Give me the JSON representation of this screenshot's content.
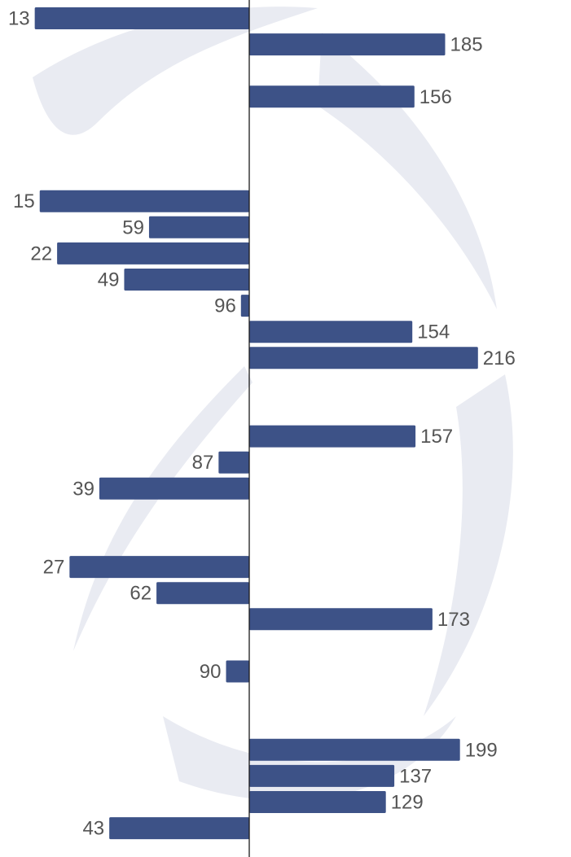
{
  "chart_data": {
    "type": "bar",
    "orientation": "horizontal",
    "rows": 33,
    "bars": [
      {
        "row": 0,
        "value": 13,
        "direction": "left"
      },
      {
        "row": 1,
        "value": 185,
        "direction": "right"
      },
      {
        "row": 3,
        "value": 156,
        "direction": "right"
      },
      {
        "row": 7,
        "value": 15,
        "direction": "left"
      },
      {
        "row": 8,
        "value": 59,
        "direction": "left"
      },
      {
        "row": 9,
        "value": 22,
        "direction": "left"
      },
      {
        "row": 10,
        "value": 49,
        "direction": "left"
      },
      {
        "row": 11,
        "value": 96,
        "direction": "left"
      },
      {
        "row": 12,
        "value": 154,
        "direction": "right"
      },
      {
        "row": 13,
        "value": 216,
        "direction": "right"
      },
      {
        "row": 16,
        "value": 157,
        "direction": "right"
      },
      {
        "row": 17,
        "value": 87,
        "direction": "left"
      },
      {
        "row": 18,
        "value": 39,
        "direction": "left"
      },
      {
        "row": 21,
        "value": 27,
        "direction": "left"
      },
      {
        "row": 22,
        "value": 62,
        "direction": "left"
      },
      {
        "row": 23,
        "value": 173,
        "direction": "right"
      },
      {
        "row": 25,
        "value": 90,
        "direction": "left"
      },
      {
        "row": 28,
        "value": 199,
        "direction": "right"
      },
      {
        "row": 29,
        "value": 137,
        "direction": "right"
      },
      {
        "row": 30,
        "value": 129,
        "direction": "right"
      },
      {
        "row": 31,
        "value": 43,
        "direction": "left"
      }
    ],
    "grid": false,
    "legend": "none",
    "colors": {
      "bar": "#3d5287",
      "label": "#555555",
      "axis": "#1a1a1a",
      "background_swirl": "#e9ebf2"
    }
  }
}
